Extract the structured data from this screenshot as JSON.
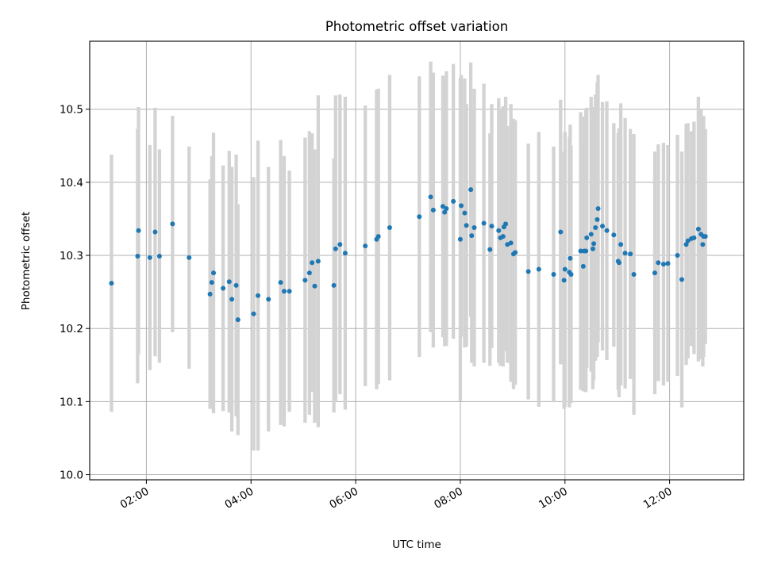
{
  "chart_data": {
    "type": "scatter",
    "title": "Photometric offset variation",
    "xlabel": "UTC time",
    "ylabel": "Photometric offset",
    "xlim": [
      "00:55",
      "13:25"
    ],
    "ylim": [
      9.993,
      10.593
    ],
    "grid": true,
    "x_ticks": [
      "02:00",
      "04:00",
      "06:00",
      "08:00",
      "10:00",
      "12:00"
    ],
    "y_ticks": [
      "10.0",
      "10.1",
      "10.2",
      "10.3",
      "10.4",
      "10.5"
    ],
    "colors": {
      "points": "#1f77b4",
      "errorbars": "#d3d3d3",
      "grid": "#b0b0b0"
    },
    "series": [
      {
        "time": [
          "01:20",
          "01:50",
          "01:51",
          "02:04",
          "02:10",
          "02:15",
          "02:30",
          "02:49",
          "03:13",
          "03:15",
          "03:17",
          "03:28",
          "03:35",
          "03:38",
          "03:43",
          "03:45",
          "04:03",
          "04:08",
          "04:20",
          "04:34",
          "04:38",
          "04:44",
          "05:02",
          "05:07",
          "05:10",
          "05:13",
          "05:17",
          "05:35",
          "05:37",
          "05:42",
          "05:48",
          "06:11",
          "06:24",
          "06:26",
          "06:39",
          "07:13",
          "07:26",
          "07:29",
          "07:40",
          "07:42",
          "07:44",
          "07:52",
          "08:00",
          "08:01",
          "08:05",
          "08:07",
          "08:12",
          "08:13",
          "08:16",
          "08:27",
          "08:34",
          "08:36",
          "08:44",
          "08:46",
          "08:49",
          "08:50",
          "08:52",
          "08:54",
          "08:58",
          "09:01",
          "09:03",
          "09:18",
          "09:30",
          "09:47",
          "09:55",
          "09:59",
          "10:00",
          "10:05",
          "10:06",
          "10:07",
          "10:18",
          "10:21",
          "10:22",
          "10:24",
          "10:25",
          "10:30",
          "10:32",
          "10:33",
          "10:35",
          "10:37",
          "10:38",
          "10:43",
          "10:48",
          "10:56",
          "11:01",
          "11:02",
          "11:04",
          "11:09",
          "11:15",
          "11:19",
          "11:43",
          "11:47",
          "11:53",
          "11:58",
          "12:09",
          "12:14",
          "12:19",
          "12:21",
          "12:25",
          "12:28",
          "12:33",
          "12:36",
          "12:38",
          "12:39",
          "12:41"
        ],
        "offset": [
          10.262,
          10.299,
          10.334,
          10.297,
          10.332,
          10.299,
          10.343,
          10.297,
          10.247,
          10.263,
          10.276,
          10.255,
          10.264,
          10.24,
          10.259,
          10.212,
          10.22,
          10.245,
          10.24,
          10.263,
          10.251,
          10.251,
          10.266,
          10.276,
          10.29,
          10.258,
          10.292,
          10.259,
          10.309,
          10.315,
          10.303,
          10.313,
          10.322,
          10.326,
          10.338,
          10.353,
          10.38,
          10.362,
          10.367,
          10.359,
          10.364,
          10.374,
          10.322,
          10.368,
          10.358,
          10.341,
          10.39,
          10.327,
          10.338,
          10.344,
          10.308,
          10.34,
          10.334,
          10.324,
          10.326,
          10.339,
          10.343,
          10.315,
          10.317,
          10.302,
          10.304,
          10.278,
          10.281,
          10.274,
          10.332,
          10.266,
          10.281,
          10.277,
          10.296,
          10.274,
          10.306,
          10.285,
          10.306,
          10.306,
          10.324,
          10.329,
          10.309,
          10.316,
          10.338,
          10.349,
          10.364,
          10.34,
          10.334,
          10.328,
          10.292,
          10.29,
          10.315,
          10.303,
          10.302,
          10.274,
          10.276,
          10.29,
          10.288,
          10.289,
          10.3,
          10.267,
          10.315,
          10.32,
          10.323,
          10.324,
          10.336,
          10.329,
          10.315,
          10.326,
          10.326
        ],
        "error": [
          0.176,
          0.174,
          0.169,
          0.154,
          0.17,
          0.146,
          0.148,
          0.152,
          0.157,
          0.173,
          0.192,
          0.168,
          0.179,
          0.181,
          0.179,
          0.158,
          0.187,
          0.212,
          0.181,
          0.195,
          0.185,
          0.165,
          0.195,
          0.194,
          0.177,
          0.187,
          0.227,
          0.174,
          0.21,
          0.205,
          0.214,
          0.192,
          0.205,
          0.202,
          0.209,
          0.192,
          0.185,
          0.188,
          0.179,
          0.183,
          0.188,
          0.188,
          0.221,
          0.179,
          0.184,
          0.166,
          0.174,
          0.174,
          0.19,
          0.191,
          0.159,
          0.167,
          0.181,
          0.175,
          0.178,
          0.165,
          0.174,
          0.162,
          0.19,
          0.185,
          0.181,
          0.175,
          0.188,
          0.175,
          0.181,
          0.176,
          0.188,
          0.185,
          0.183,
          0.176,
          0.19,
          0.171,
          0.184,
          0.193,
          0.178,
          0.188,
          0.192,
          0.187,
          0.182,
          0.188,
          0.183,
          0.17,
          0.177,
          0.153,
          0.176,
          0.184,
          0.193,
          0.185,
          0.171,
          0.192,
          0.166,
          0.162,
          0.166,
          0.162,
          0.165,
          0.175,
          0.165,
          0.161,
          0.147,
          0.159,
          0.181,
          0.171,
          0.167,
          0.165,
          0.147
        ]
      }
    ]
  }
}
